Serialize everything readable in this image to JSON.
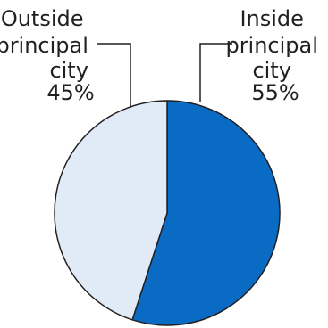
{
  "chart_data": {
    "type": "pie",
    "slices": [
      {
        "label_lines": [
          "Inside",
          "principal",
          "city"
        ],
        "value_text": "55%",
        "value": 55,
        "color": "#0a6bc4"
      },
      {
        "label_lines": [
          "Outside",
          "principal",
          "city"
        ],
        "value_text": "45%",
        "value": 45,
        "color": "#e1ebf8"
      }
    ],
    "outline_color": "#231f20"
  }
}
